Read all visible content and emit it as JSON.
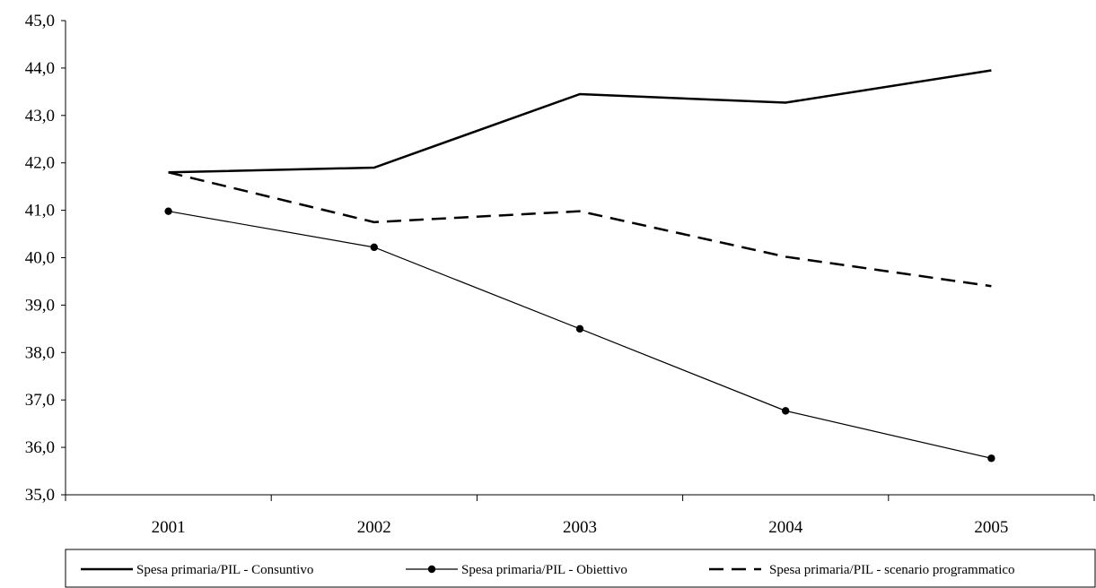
{
  "chart_data": {
    "type": "line",
    "categories": [
      "2001",
      "2002",
      "2003",
      "2004",
      "2005"
    ],
    "ylim": [
      35,
      45
    ],
    "yticks": [
      "35,0",
      "36,0",
      "37,0",
      "38,0",
      "39,0",
      "40,0",
      "41,0",
      "42,0",
      "43,0",
      "44,0",
      "45,0"
    ],
    "grid": false,
    "legend_position": "bottom",
    "series": [
      {
        "name": "Spesa primaria/PIL - Consuntivo",
        "values": [
          41.8,
          41.9,
          43.45,
          43.27,
          43.95
        ],
        "style": "solid-thick",
        "color": "#000000"
      },
      {
        "name": "Spesa primaria/PIL - Obiettivo",
        "values": [
          40.98,
          40.22,
          38.5,
          36.77,
          35.77
        ],
        "style": "solid-thin-markers",
        "color": "#000000"
      },
      {
        "name": "Spesa primaria/PIL - scenario programmatico",
        "values": [
          41.8,
          40.75,
          40.98,
          40.02,
          39.4
        ],
        "style": "dashed",
        "color": "#000000"
      }
    ]
  }
}
